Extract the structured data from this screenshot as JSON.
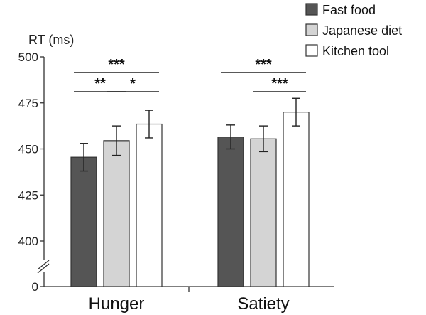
{
  "chart_data": {
    "type": "bar",
    "ylabel": "RT (ms)",
    "ylim": [
      400,
      500
    ],
    "yticks": [
      {
        "value": 500,
        "label": "500"
      },
      {
        "value": 475,
        "label": "475"
      },
      {
        "value": 450,
        "label": "450"
      },
      {
        "value": 425,
        "label": "425"
      },
      {
        "value": 400,
        "label": "400"
      }
    ],
    "zero_label": "0",
    "axis_break": true,
    "categories": [
      "Hunger",
      "Satiety"
    ],
    "legend_position": "top-right",
    "series": [
      {
        "name": "Fast food",
        "color": "#555555",
        "values": [
          445.5,
          456.5
        ],
        "errors": [
          7.5,
          6.5
        ]
      },
      {
        "name": "Japanese diet",
        "color": "#d4d4d4",
        "values": [
          454.5,
          455.5
        ],
        "errors": [
          8.0,
          7.0
        ]
      },
      {
        "name": "Kitchen tool",
        "color": "#ffffff",
        "values": [
          463.5,
          470.0
        ],
        "errors": [
          7.5,
          7.5
        ]
      }
    ],
    "significance": [
      {
        "category": 0,
        "from": 0,
        "to": 2,
        "label": "***",
        "level": 1
      },
      {
        "category": 0,
        "from": 0,
        "to": 1,
        "label": "**",
        "level": 0
      },
      {
        "category": 0,
        "from": 1,
        "to": 2,
        "label": "*",
        "level": 0
      },
      {
        "category": 1,
        "from": 0,
        "to": 2,
        "label": "***",
        "level": 1
      },
      {
        "category": 1,
        "from": 1,
        "to": 2,
        "label": "***",
        "level": 0
      }
    ]
  }
}
